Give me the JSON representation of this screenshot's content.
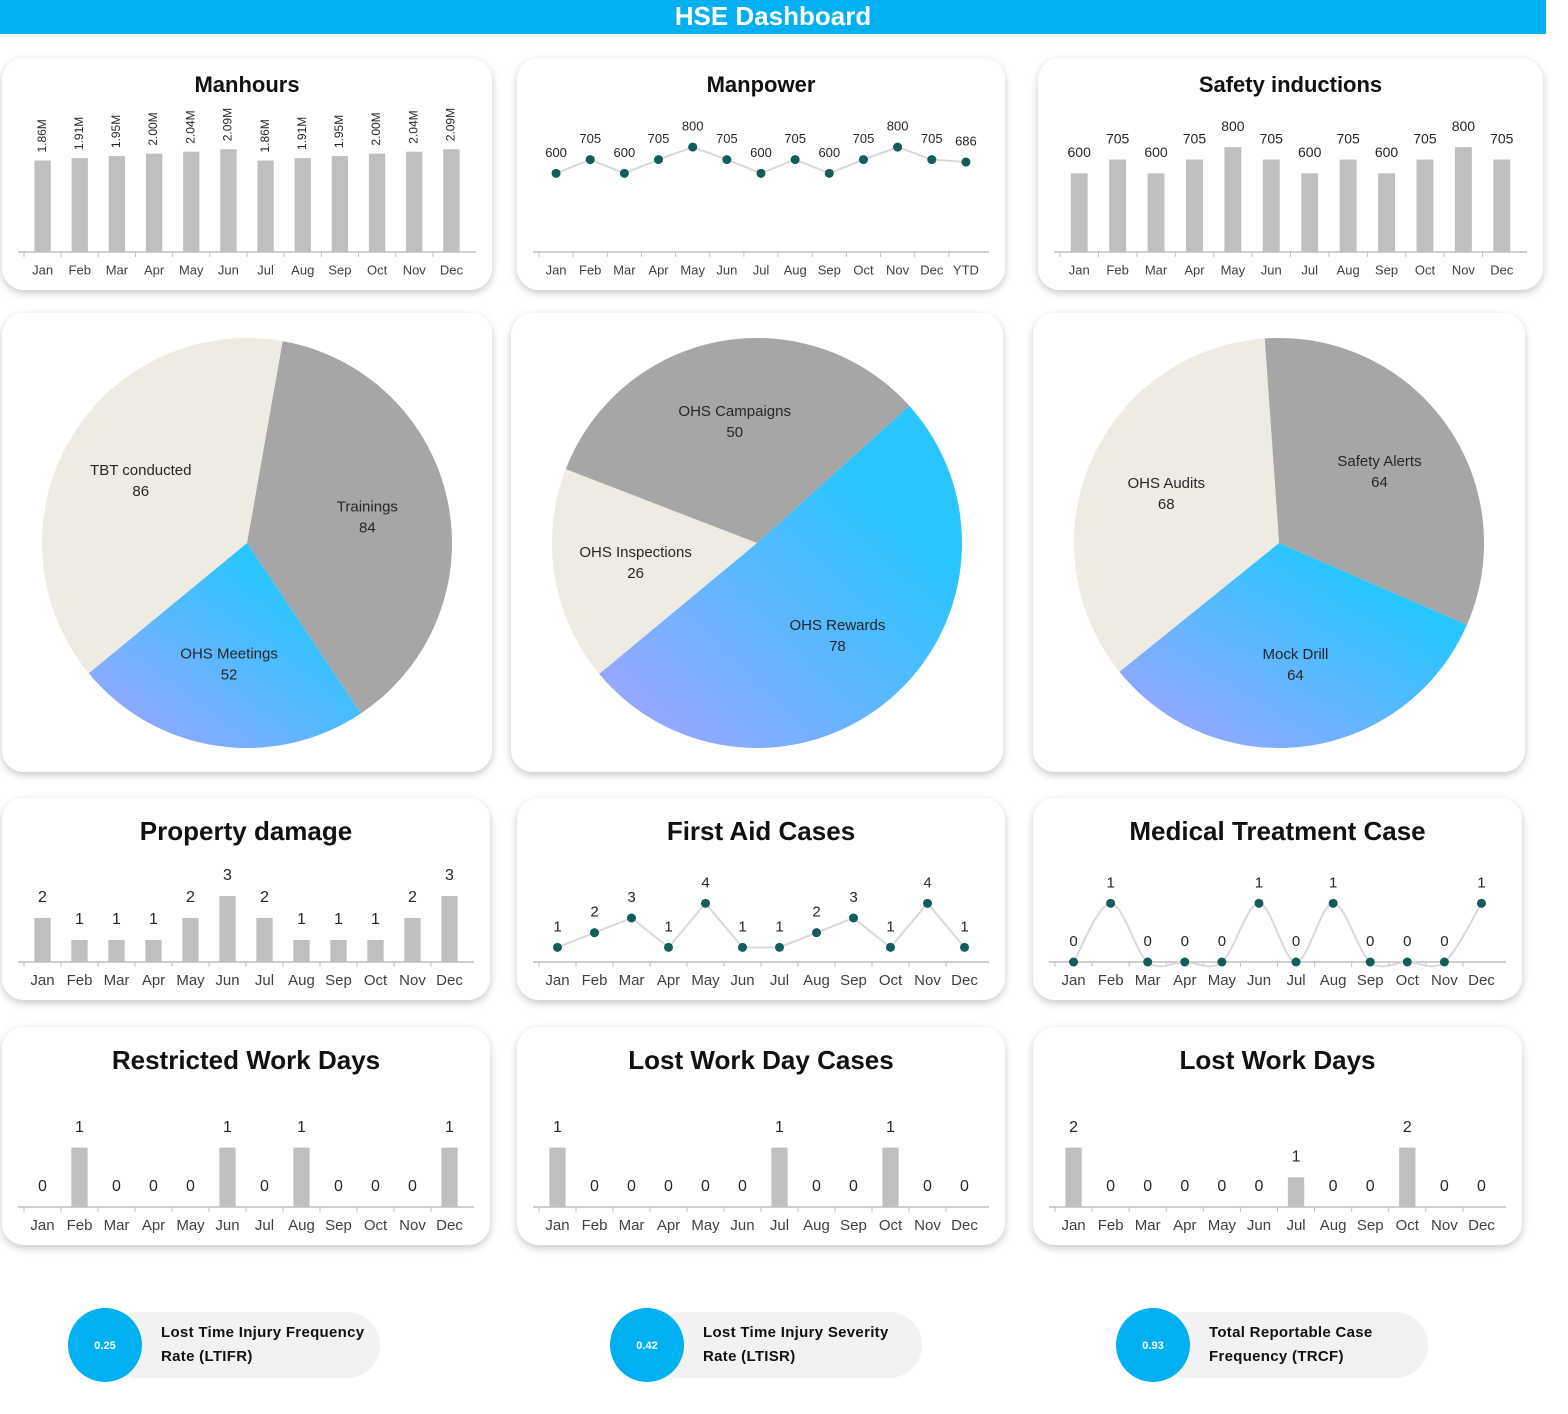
{
  "title": "HSE Dashboard",
  "chart_data": [
    {
      "type": "bar",
      "title": "Manhours",
      "categories": [
        "Jan",
        "Feb",
        "Mar",
        "Apr",
        "May",
        "Jun",
        "Jul",
        "Aug",
        "Sep",
        "Oct",
        "Nov",
        "Dec"
      ],
      "values": [
        1860000,
        1910000,
        1950000,
        2000000,
        2040000,
        2090000,
        1860000,
        1910000,
        1950000,
        2000000,
        2040000,
        2090000
      ],
      "value_labels": [
        "1.86M",
        "1.91M",
        "1.95M",
        "2.00M",
        "2.04M",
        "2.09M",
        "1.86M",
        "1.91M",
        "1.95M",
        "2.00M",
        "2.04M",
        "2.09M"
      ],
      "color": "#bfbfbf",
      "ylim": [
        0,
        2400000
      ]
    },
    {
      "type": "line",
      "title": "Manpower",
      "categories": [
        "Jan",
        "Feb",
        "Mar",
        "Apr",
        "May",
        "Jun",
        "Jul",
        "Aug",
        "Sep",
        "Oct",
        "Nov",
        "Dec",
        "YTD"
      ],
      "values": [
        600,
        705,
        600,
        705,
        800,
        705,
        600,
        705,
        600,
        705,
        800,
        705,
        686
      ],
      "color": "#125c5c",
      "ylim": [
        0,
        900
      ]
    },
    {
      "type": "bar",
      "title": "Safety inductions",
      "categories": [
        "Jan",
        "Feb",
        "Mar",
        "Apr",
        "May",
        "Jun",
        "Jul",
        "Aug",
        "Sep",
        "Oct",
        "Nov",
        "Dec"
      ],
      "values": [
        600,
        705,
        600,
        705,
        800,
        705,
        600,
        705,
        600,
        705,
        800,
        705
      ],
      "color": "#bfbfbf",
      "ylim": [
        0,
        900
      ]
    },
    {
      "type": "pie",
      "categories": [
        "Trainings",
        "OHS Meetings",
        "TBT conducted"
      ],
      "values": [
        84,
        52,
        86
      ],
      "colors": [
        "#a6a6a6",
        "#29c5ff",
        "#eeebe2"
      ],
      "start_angle": 10
    },
    {
      "type": "pie",
      "categories": [
        "OHS Rewards",
        "OHS Inspections",
        "OHS Campaigns"
      ],
      "values": [
        78,
        26,
        50
      ],
      "colors": [
        "#29c5ff",
        "#eeebe2",
        "#a6a6a6"
      ],
      "start_angle": 48
    },
    {
      "type": "pie",
      "categories": [
        "Safety Alerts",
        "Mock Drill",
        "OHS Audits"
      ],
      "values": [
        64,
        64,
        68
      ],
      "colors": [
        "#a6a6a6",
        "#29c5ff",
        "#eeebe2"
      ],
      "start_angle": -4
    },
    {
      "type": "bar",
      "title": "Property damage",
      "categories": [
        "Jan",
        "Feb",
        "Mar",
        "Apr",
        "May",
        "Jun",
        "Jul",
        "Aug",
        "Sep",
        "Oct",
        "Nov",
        "Dec"
      ],
      "values": [
        2,
        1,
        1,
        1,
        2,
        3,
        2,
        1,
        1,
        1,
        2,
        3
      ],
      "color": "#bfbfbf",
      "ylim": [
        0,
        4
      ]
    },
    {
      "type": "line",
      "title": "First Aid Cases",
      "categories": [
        "Jan",
        "Feb",
        "Mar",
        "Apr",
        "May",
        "Jun",
        "Jul",
        "Aug",
        "Sep",
        "Oct",
        "Nov",
        "Dec"
      ],
      "values": [
        1,
        2,
        3,
        1,
        4,
        1,
        1,
        2,
        3,
        1,
        4,
        1
      ],
      "color": "#125c5c",
      "ylim": [
        0,
        6
      ]
    },
    {
      "type": "line",
      "title": "Medical Treatment Case",
      "categories": [
        "Jan",
        "Feb",
        "Mar",
        "Apr",
        "May",
        "Jun",
        "Jul",
        "Aug",
        "Sep",
        "Oct",
        "Nov",
        "Dec"
      ],
      "values": [
        0,
        1,
        0,
        0,
        0,
        1,
        0,
        1,
        0,
        0,
        0,
        1
      ],
      "color": "#125c5c",
      "ylim": [
        0,
        1.5
      ],
      "smooth": true
    },
    {
      "type": "bar",
      "title": "Restricted Work Days",
      "categories": [
        "Jan",
        "Feb",
        "Mar",
        "Apr",
        "May",
        "Jun",
        "Jul",
        "Aug",
        "Sep",
        "Oct",
        "Nov",
        "Dec"
      ],
      "values": [
        0,
        1,
        0,
        0,
        0,
        1,
        0,
        1,
        0,
        0,
        0,
        1
      ],
      "color": "#bfbfbf",
      "ylim": [
        0,
        1.75
      ]
    },
    {
      "type": "bar",
      "title": "Lost Work Day Cases",
      "categories": [
        "Jan",
        "Feb",
        "Mar",
        "Apr",
        "May",
        "Jun",
        "Jul",
        "Aug",
        "Sep",
        "Oct",
        "Nov",
        "Dec"
      ],
      "values": [
        1,
        0,
        0,
        0,
        0,
        0,
        1,
        0,
        0,
        1,
        0,
        0
      ],
      "color": "#bfbfbf",
      "ylim": [
        0,
        1.75
      ]
    },
    {
      "type": "bar",
      "title": "Lost Work Days",
      "categories": [
        "Jan",
        "Feb",
        "Mar",
        "Apr",
        "May",
        "Jun",
        "Jul",
        "Aug",
        "Sep",
        "Oct",
        "Nov",
        "Dec"
      ],
      "values": [
        2,
        0,
        0,
        0,
        0,
        0,
        1,
        0,
        0,
        2,
        0,
        0
      ],
      "color": "#bfbfbf",
      "ylim": [
        0,
        3.5
      ]
    }
  ],
  "kpis": [
    {
      "value": 0.25,
      "label": "Lost Time Injury Frequency Rate (LTIFR)"
    },
    {
      "value": 0.42,
      "label": "Lost Time Injury Severity Rate (LTISR)"
    },
    {
      "value": 0.93,
      "label": "Total Reportable Case Frequency (TRCF)"
    }
  ]
}
